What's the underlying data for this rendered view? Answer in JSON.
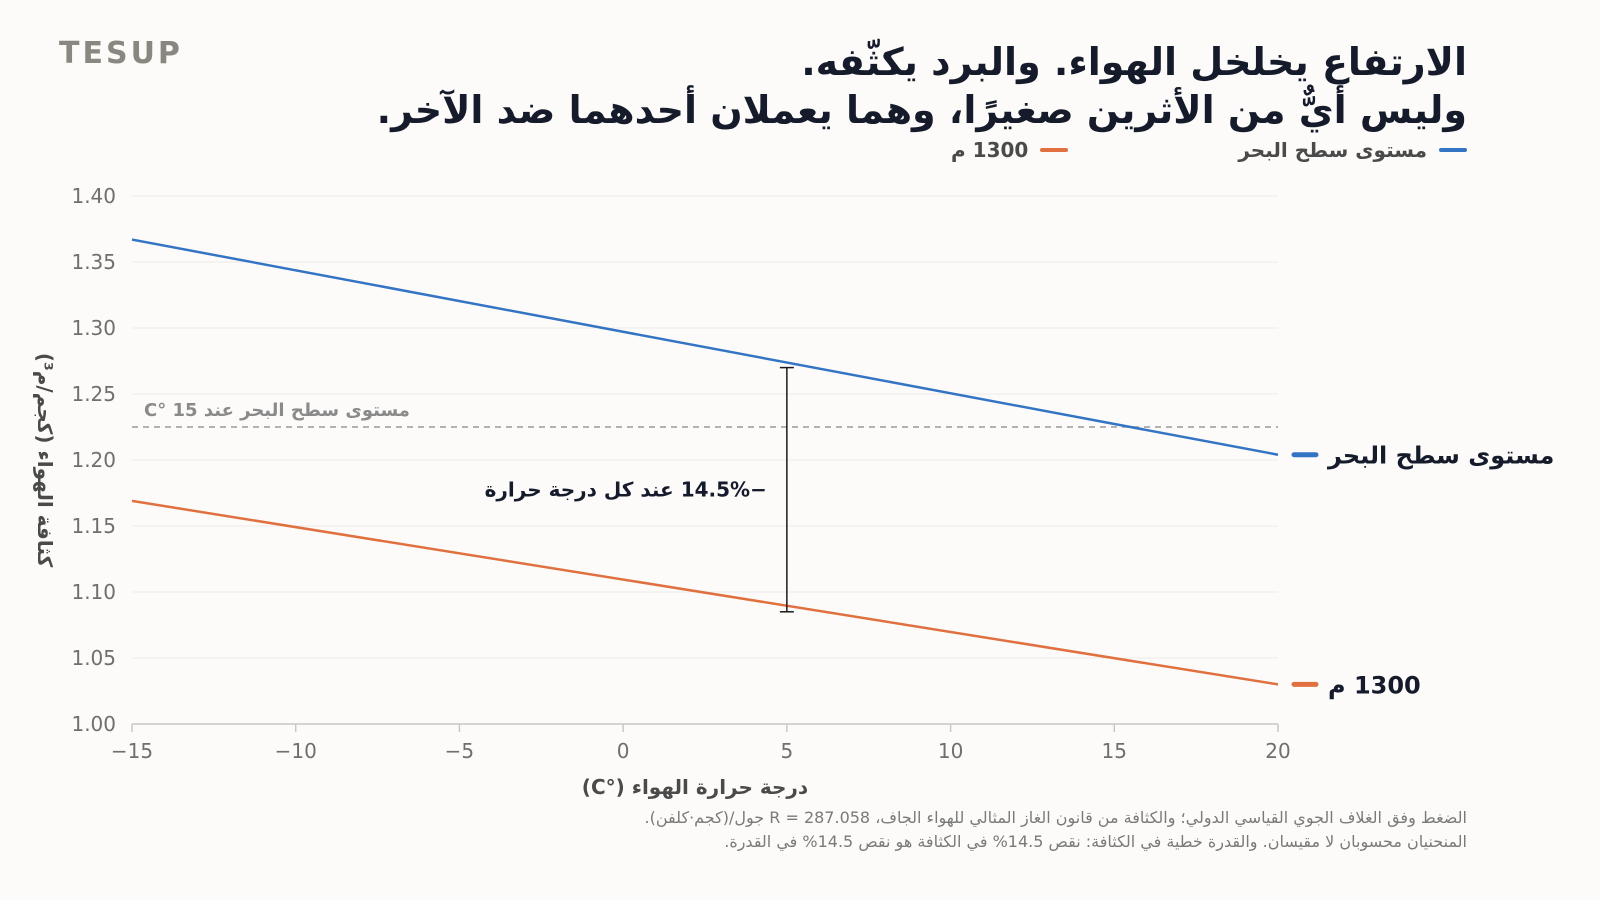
{
  "brand": "TESUP",
  "title_lines": [
    "الارتفاع يخلخل الهواء. والبرد يكثّفه.",
    "وليس أيٌّ من الأثرين صغيرًا، وهما يعملان أحدهما ضد الآخر."
  ],
  "chart_data": {
    "type": "line",
    "xlabel": "درجة حرارة الهواء (°C)",
    "ylabel": "كثافة الهواء (كجم/م³)",
    "xlim": [
      -15,
      20
    ],
    "ylim": [
      1.0,
      1.4
    ],
    "x_ticks": [
      "−15",
      "−10",
      "−5",
      "0",
      "5",
      "10",
      "15",
      "20"
    ],
    "y_ticks": [
      "1.00",
      "1.05",
      "1.10",
      "1.15",
      "1.20",
      "1.25",
      "1.30",
      "1.35",
      "1.40"
    ],
    "grid": true,
    "legend_position": "top-right",
    "series": [
      {
        "name": "مستوى سطح البحر",
        "color": "#3474c4",
        "x": [
          -15,
          20
        ],
        "y": [
          1.367,
          1.204
        ]
      },
      {
        "name": "1300 م",
        "color": "#e07040",
        "x": [
          -15,
          20
        ],
        "y": [
          1.169,
          1.03
        ]
      }
    ],
    "reference_line": {
      "y": 1.225,
      "label": "مستوى سطح البحر عند 15 °C"
    },
    "gap_annotation": {
      "x": 5,
      "y_top": 1.27,
      "y_bottom": 1.085,
      "label": "−14.5% عند كل درجة حرارة"
    }
  },
  "footnote_lines": [
    "الضغط وفق الغلاف الجوي القياسي الدولي؛ والكثافة من قانون الغاز المثالي للهواء الجاف، R = 287.058 جول/(كجم·كلفن).",
    "المنحنيان محسوبان لا مقيسان. والقدرة خطية في الكثافة: نقص 14.5% في الكثافة هو نقص 14.5% في القدرة."
  ]
}
